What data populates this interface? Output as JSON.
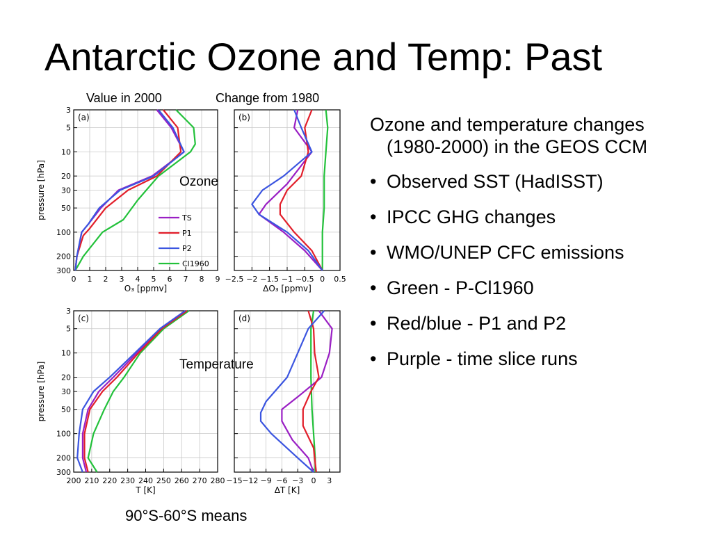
{
  "slide": {
    "title": "Antarctic Ozone and Temp: Past",
    "column_left": "Value in 2000",
    "column_right": "Change from 1980",
    "label_ozone": "Ozone",
    "label_temperature": "Temperature",
    "footer": "90°S-60°S means",
    "intro": "Ozone and temperature changes (1980-2000) in the GEOS CCM",
    "bullets": [
      "Observed SST (HadISST)",
      "IPCC GHG changes",
      "WMO/UNEP CFC emissions",
      "Green - P-Cl1960",
      "Red/blue - P1 and P2",
      "Purple - time slice runs"
    ]
  },
  "colors": {
    "TS": "#9a1fc4",
    "P1": "#e21e2a",
    "P2": "#3b55e0",
    "Cl1960": "#22c13a"
  },
  "chart_data": [
    {
      "id": "a",
      "panel_label": "(a)",
      "type": "line",
      "xlabel": "O₃ [ppmv]",
      "ylabel": "pressure [hPa]",
      "xlim": [
        0,
        9
      ],
      "ylim": [
        300,
        3
      ],
      "yscale": "log",
      "xticks": [
        0,
        1,
        2,
        3,
        4,
        5,
        6,
        7,
        8,
        9
      ],
      "yticks": [
        3,
        5,
        10,
        20,
        30,
        50,
        100,
        200,
        300
      ],
      "grid": true,
      "legend": {
        "position": "lower-right",
        "entries": [
          "TS",
          "P1",
          "P2",
          "Cl1960"
        ]
      },
      "series": [
        {
          "name": "TS",
          "points": [
            [
              5.2,
              3
            ],
            [
              6.1,
              5
            ],
            [
              6.9,
              10
            ],
            [
              4.9,
              20
            ],
            [
              2.8,
              30
            ],
            [
              1.7,
              50
            ],
            [
              0.9,
              80
            ],
            [
              0.5,
              100
            ],
            [
              0.2,
              200
            ],
            [
              0.1,
              300
            ]
          ]
        },
        {
          "name": "P1",
          "points": [
            [
              5.6,
              3
            ],
            [
              6.5,
              5
            ],
            [
              6.7,
              10
            ],
            [
              5.2,
              20
            ],
            [
              3.4,
              30
            ],
            [
              2.0,
              50
            ],
            [
              1.0,
              90
            ],
            [
              0.6,
              110
            ],
            [
              0.2,
              200
            ],
            [
              0.1,
              300
            ]
          ]
        },
        {
          "name": "P2",
          "points": [
            [
              5.3,
              3
            ],
            [
              6.2,
              5
            ],
            [
              6.9,
              10
            ],
            [
              5.0,
              20
            ],
            [
              2.9,
              30
            ],
            [
              1.6,
              50
            ],
            [
              0.9,
              80
            ],
            [
              0.5,
              100
            ],
            [
              0.2,
              200
            ],
            [
              0.1,
              300
            ]
          ]
        },
        {
          "name": "Cl1960",
          "points": [
            [
              6.4,
              3
            ],
            [
              7.5,
              5
            ],
            [
              7.6,
              8
            ],
            [
              7.3,
              10
            ],
            [
              5.3,
              20
            ],
            [
              4.0,
              40
            ],
            [
              3.1,
              70
            ],
            [
              1.8,
              100
            ],
            [
              0.6,
              200
            ],
            [
              0.1,
              300
            ]
          ]
        }
      ]
    },
    {
      "id": "b",
      "panel_label": "(b)",
      "type": "line",
      "xlabel": "ΔO₃ [ppmv]",
      "xlim": [
        -2.5,
        0.5
      ],
      "ylim": [
        300,
        3
      ],
      "yscale": "log",
      "xticks": [
        -2.5,
        -2,
        -1.5,
        -1,
        -0.5,
        0,
        0.5
      ],
      "yticks": [
        3,
        5,
        10,
        20,
        30,
        50,
        100,
        200,
        300
      ],
      "grid": true,
      "series": [
        {
          "name": "TS",
          "points": [
            [
              -0.7,
              3
            ],
            [
              -0.8,
              5
            ],
            [
              -0.3,
              10
            ],
            [
              -1.0,
              25
            ],
            [
              -1.6,
              45
            ],
            [
              -1.8,
              60
            ],
            [
              -1.1,
              100
            ],
            [
              -0.5,
              170
            ],
            [
              0,
              300
            ]
          ]
        },
        {
          "name": "P1",
          "points": [
            [
              -0.3,
              3
            ],
            [
              -0.5,
              5
            ],
            [
              -0.4,
              10
            ],
            [
              -0.6,
              20
            ],
            [
              -1.0,
              30
            ],
            [
              -1.2,
              45
            ],
            [
              -1.2,
              60
            ],
            [
              -0.8,
              100
            ],
            [
              -0.3,
              170
            ],
            [
              0,
              300
            ]
          ]
        },
        {
          "name": "P2",
          "points": [
            [
              -0.8,
              3
            ],
            [
              -0.6,
              5
            ],
            [
              -0.3,
              10
            ],
            [
              -1.1,
              20
            ],
            [
              -1.7,
              30
            ],
            [
              -2.0,
              45
            ],
            [
              -1.8,
              60
            ],
            [
              -1.0,
              100
            ],
            [
              -0.4,
              170
            ],
            [
              0,
              300
            ]
          ]
        },
        {
          "name": "Cl1960",
          "points": [
            [
              0.1,
              3
            ],
            [
              0.15,
              5
            ],
            [
              0.1,
              10
            ],
            [
              0.05,
              20
            ],
            [
              0.05,
              50
            ],
            [
              0,
              100
            ],
            [
              0,
              300
            ]
          ]
        }
      ]
    },
    {
      "id": "c",
      "panel_label": "(c)",
      "type": "line",
      "xlabel": "T [K]",
      "ylabel": "pressure [hPa]",
      "xlim": [
        200,
        280
      ],
      "ylim": [
        300,
        3
      ],
      "yscale": "log",
      "xticks": [
        200,
        210,
        220,
        230,
        240,
        250,
        260,
        270,
        280
      ],
      "yticks": [
        3,
        5,
        10,
        20,
        30,
        50,
        100,
        200,
        300
      ],
      "grid": true,
      "series": [
        {
          "name": "TS",
          "points": [
            [
              262,
              3
            ],
            [
              248,
              5
            ],
            [
              235,
              10
            ],
            [
              222,
              20
            ],
            [
              214,
              30
            ],
            [
              208,
              50
            ],
            [
              205,
              100
            ],
            [
              205,
              200
            ],
            [
              207,
              300
            ]
          ]
        },
        {
          "name": "P1",
          "points": [
            [
              263,
              3
            ],
            [
              249,
              5
            ],
            [
              236,
              10
            ],
            [
              224,
              20
            ],
            [
              216,
              30
            ],
            [
              209,
              50
            ],
            [
              206,
              100
            ],
            [
              206,
              200
            ],
            [
              208,
              300
            ]
          ]
        },
        {
          "name": "P2",
          "points": [
            [
              262,
              3
            ],
            [
              248,
              5
            ],
            [
              234,
              10
            ],
            [
              220,
              20
            ],
            [
              211,
              30
            ],
            [
              205,
              50
            ],
            [
              203,
              100
            ],
            [
              202,
              200
            ],
            [
              205,
              300
            ]
          ]
        },
        {
          "name": "Cl1960",
          "points": [
            [
              264,
              3
            ],
            [
              250,
              5
            ],
            [
              237,
              10
            ],
            [
              228,
              20
            ],
            [
              222,
              30
            ],
            [
              217,
              50
            ],
            [
              211,
              100
            ],
            [
              208,
              200
            ],
            [
              213,
              300
            ]
          ]
        }
      ]
    },
    {
      "id": "d",
      "panel_label": "(d)",
      "type": "line",
      "xlabel": "ΔT [K]",
      "xlim": [
        -15,
        5
      ],
      "ylim": [
        300,
        3
      ],
      "yscale": "log",
      "xticks": [
        -15,
        -12,
        -9,
        -6,
        -3,
        0,
        3
      ],
      "yticks": [
        3,
        5,
        10,
        20,
        30,
        50,
        100,
        200,
        300
      ],
      "grid": true,
      "series": [
        {
          "name": "TS",
          "points": [
            [
              1,
              3
            ],
            [
              3.5,
              5
            ],
            [
              3,
              10
            ],
            [
              1.5,
              20
            ],
            [
              -3,
              35
            ],
            [
              -6,
              50
            ],
            [
              -6,
              70
            ],
            [
              -4,
              120
            ],
            [
              -1,
              200
            ],
            [
              0,
              300
            ]
          ]
        },
        {
          "name": "P1",
          "points": [
            [
              -1,
              3
            ],
            [
              0,
              5
            ],
            [
              0.2,
              10
            ],
            [
              1,
              20
            ],
            [
              -0.5,
              30
            ],
            [
              -2,
              50
            ],
            [
              -2,
              80
            ],
            [
              0,
              150
            ],
            [
              0.5,
              300
            ]
          ]
        },
        {
          "name": "P2",
          "points": [
            [
              2,
              3
            ],
            [
              -1,
              5
            ],
            [
              -3,
              10
            ],
            [
              -5,
              20
            ],
            [
              -9,
              40
            ],
            [
              -10,
              55
            ],
            [
              -10,
              70
            ],
            [
              -8,
              100
            ],
            [
              -3,
              200
            ],
            [
              0,
              300
            ]
          ]
        },
        {
          "name": "Cl1960",
          "points": [
            [
              0,
              3
            ],
            [
              -0.5,
              5
            ],
            [
              -0.5,
              10
            ],
            [
              -0.5,
              20
            ],
            [
              -0.3,
              50
            ],
            [
              0,
              100
            ],
            [
              0.3,
              200
            ],
            [
              0.3,
              300
            ]
          ]
        }
      ]
    }
  ]
}
